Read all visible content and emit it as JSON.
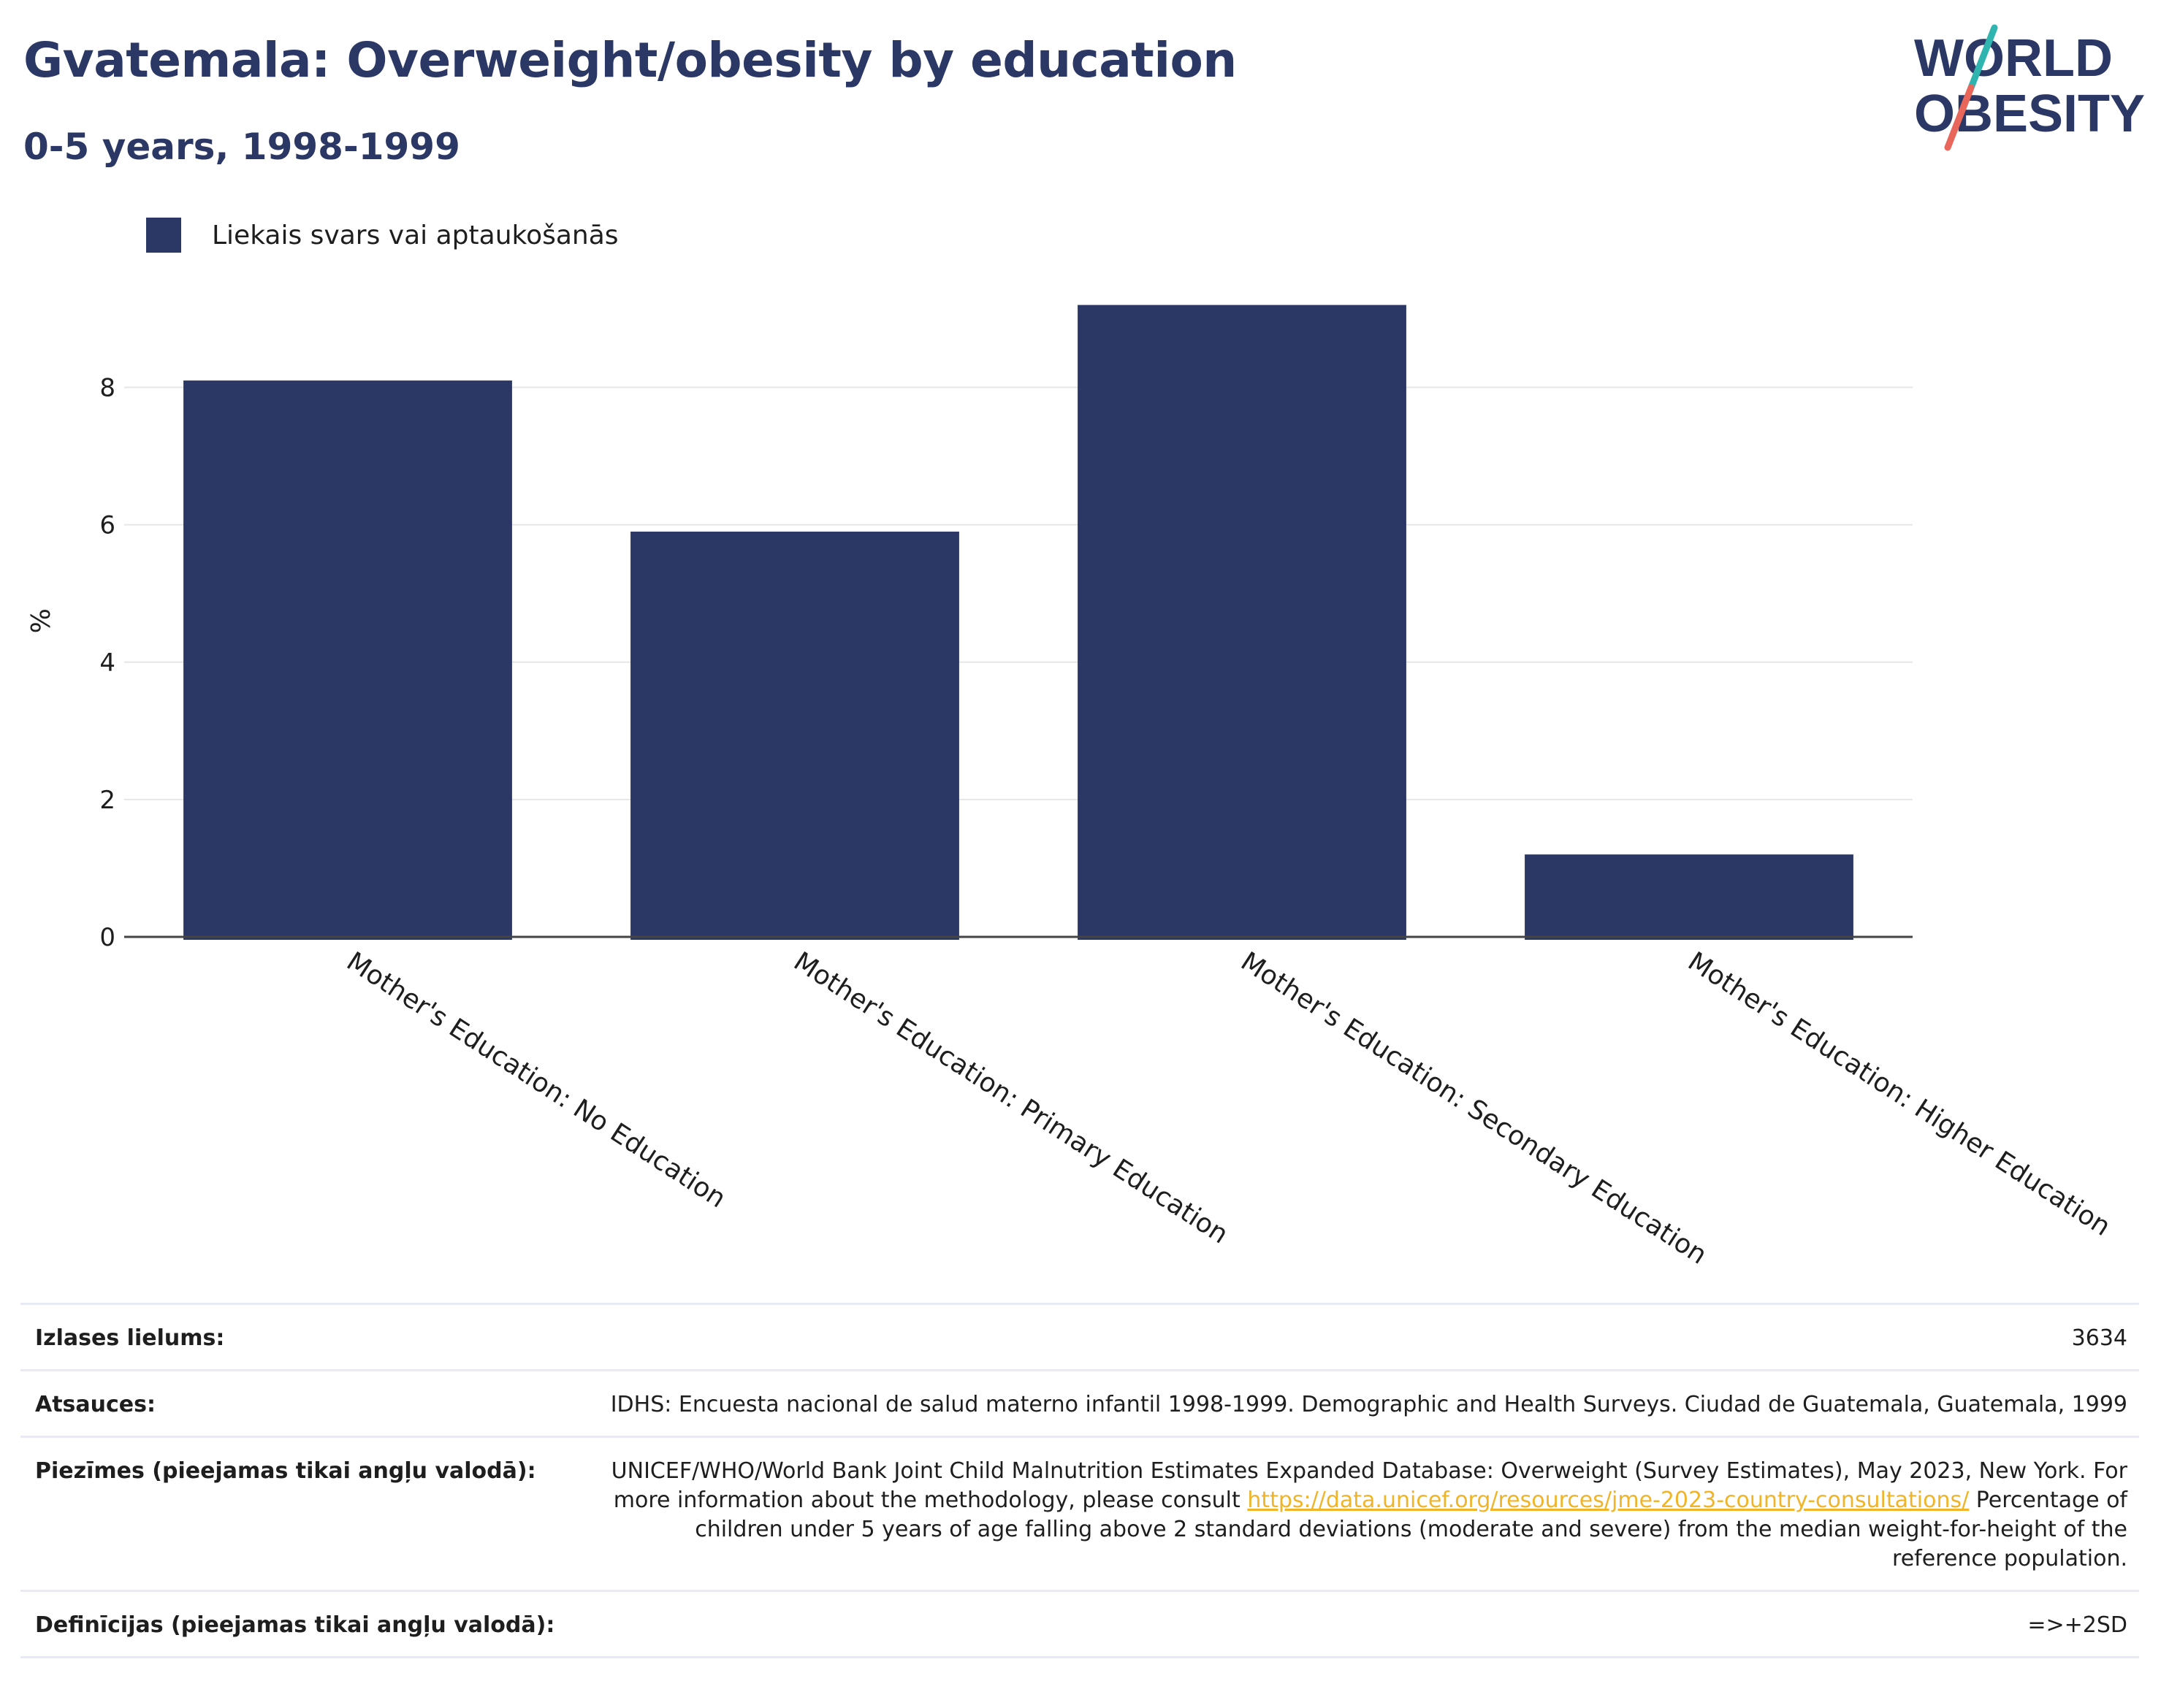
{
  "header": {
    "title": "Gvatemala: Overweight/obesity by education",
    "subtitle": "0-5 years, 1998-1999",
    "logo_line1": "WORLD",
    "logo_line2": "OBESITY"
  },
  "colors": {
    "bar": "#2b3764",
    "title": "#2b3764",
    "logo_slash_top": "#2fb4b0",
    "logo_slash_bottom": "#e8665a",
    "link": "#f0b429",
    "grid": "#e6e6e6",
    "axis": "#444444"
  },
  "legend": {
    "label": "Liekais svars vai aptaukošanās"
  },
  "chart_data": {
    "type": "bar",
    "categories": [
      "Mother's Education: No Education",
      "Mother's Education: Primary Education",
      "Mother's Education: Secondary Education",
      "Mother's Education: Higher Education"
    ],
    "series": [
      {
        "name": "Liekais svars vai aptaukošanās",
        "values": [
          8.1,
          5.9,
          9.2,
          1.2
        ]
      }
    ],
    "ylabel": "%",
    "ylim": [
      0,
      9.6
    ],
    "yticks": [
      0,
      2,
      4,
      6,
      8
    ],
    "grid": true,
    "legend_position": "top-left"
  },
  "info": {
    "sample_label": "Izlases lielums:",
    "sample_value": "3634",
    "refs_label": "Atsauces:",
    "refs_value": "IDHS: Encuesta nacional de salud materno infantil 1998-1999. Demographic and Health Surveys. Ciudad de Guatemala, Guatemala, 1999",
    "notes_label": "Piezīmes (pieejamas tikai angļu valodā):",
    "notes_text1": "UNICEF/WHO/World Bank Joint Child Malnutrition Estimates Expanded Database: Overweight (Survey Estimates), May 2023, New York. For more information about the methodology, please consult ",
    "notes_link": "https://data.unicef.org/resources/jme-2023-country-consultations/",
    "notes_text2": " Percentage of children under 5 years of age falling above 2 standard deviations (moderate and severe) from the median weight-for-height of the reference population.",
    "defs_label": "Definīcijas (pieejamas tikai angļu valodā):",
    "defs_value": "=>+2SD"
  }
}
